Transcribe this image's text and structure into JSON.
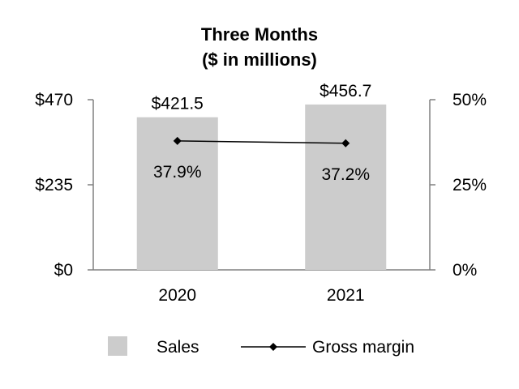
{
  "chart_data": {
    "type": "bar",
    "title": "Three Months",
    "subtitle": "($ in millions)",
    "categories": [
      "2020",
      "2021"
    ],
    "series": [
      {
        "name": "Sales",
        "kind": "bar",
        "axis": "left",
        "values": [
          421.5,
          456.7
        ],
        "labels": [
          "$421.5",
          "$456.7"
        ],
        "color": "#cccccc"
      },
      {
        "name": "Gross margin",
        "kind": "line",
        "axis": "right",
        "values": [
          37.9,
          37.2
        ],
        "labels": [
          "37.9%",
          "37.2%"
        ],
        "color": "#000000"
      }
    ],
    "left_axis": {
      "ylim": [
        0,
        470
      ],
      "ticks": [
        0,
        235,
        470
      ],
      "tick_labels": [
        "$0",
        "$235",
        "$470"
      ]
    },
    "right_axis": {
      "ylim": [
        0,
        50
      ],
      "ticks": [
        0,
        25,
        50
      ],
      "tick_labels": [
        "0%",
        "25%",
        "50%"
      ]
    },
    "grid": false,
    "legend_position": "bottom",
    "axis_color": "#808080"
  }
}
